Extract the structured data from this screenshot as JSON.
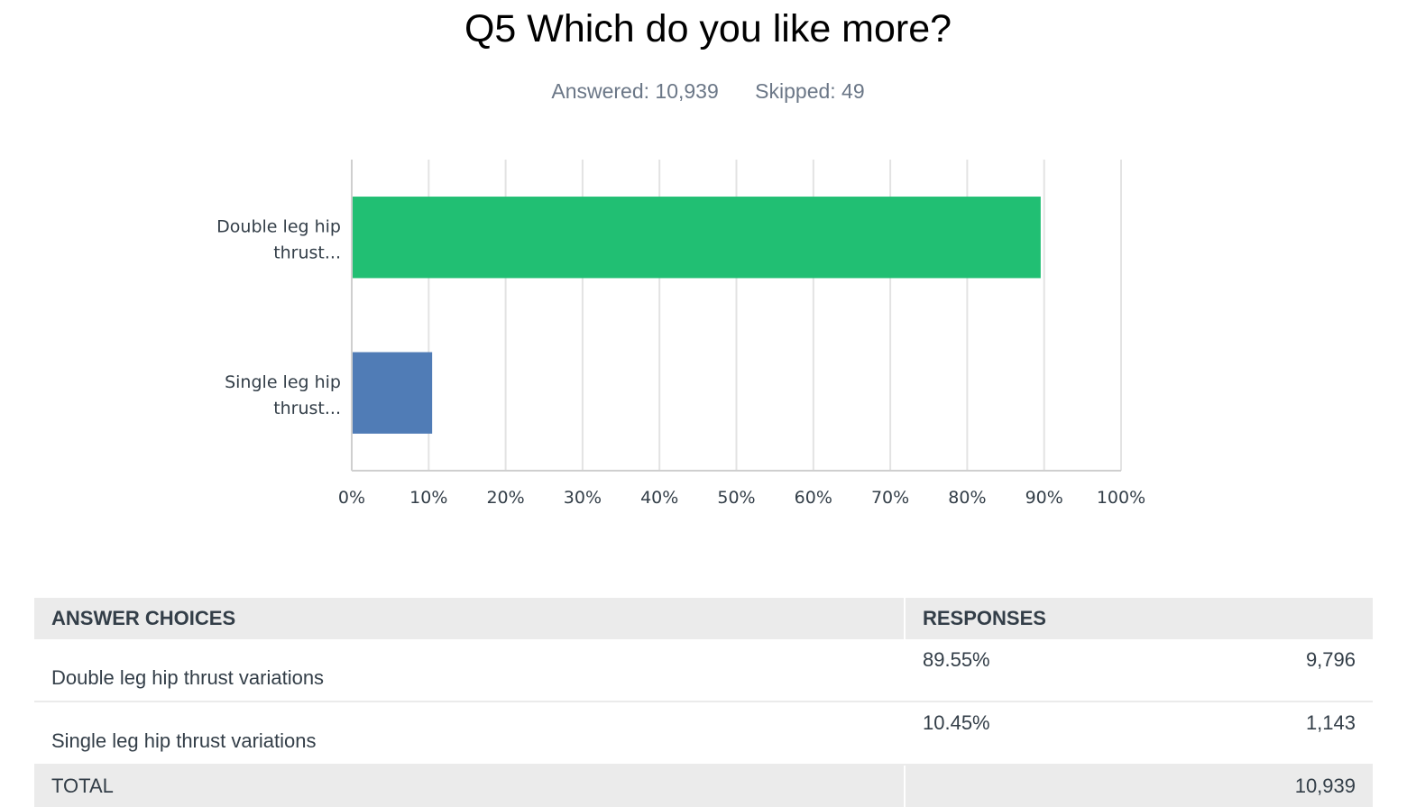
{
  "question": {
    "title": "Q5 Which do you like more?",
    "answered": "Answered: 10,939",
    "skipped": "Skipped: 49"
  },
  "chart_data": {
    "type": "bar",
    "orientation": "horizontal",
    "categories": [
      "Double leg hip thrust...",
      "Single leg hip thrust..."
    ],
    "values": [
      89.55,
      10.45
    ],
    "colors": [
      "#21bf73",
      "#507cb6"
    ],
    "xlim": [
      0,
      100
    ],
    "xticks": [
      "0%",
      "10%",
      "20%",
      "30%",
      "40%",
      "50%",
      "60%",
      "70%",
      "80%",
      "90%",
      "100%"
    ],
    "grid": true
  },
  "table": {
    "headers": {
      "choices": "ANSWER CHOICES",
      "responses": "RESPONSES"
    },
    "rows": [
      {
        "choice": "Double leg hip thrust variations",
        "percent": "89.55%",
        "count": "9,796"
      },
      {
        "choice": "Single leg hip thrust variations",
        "percent": "10.45%",
        "count": "1,143"
      }
    ],
    "total": {
      "label": "TOTAL",
      "count": "10,939"
    }
  }
}
